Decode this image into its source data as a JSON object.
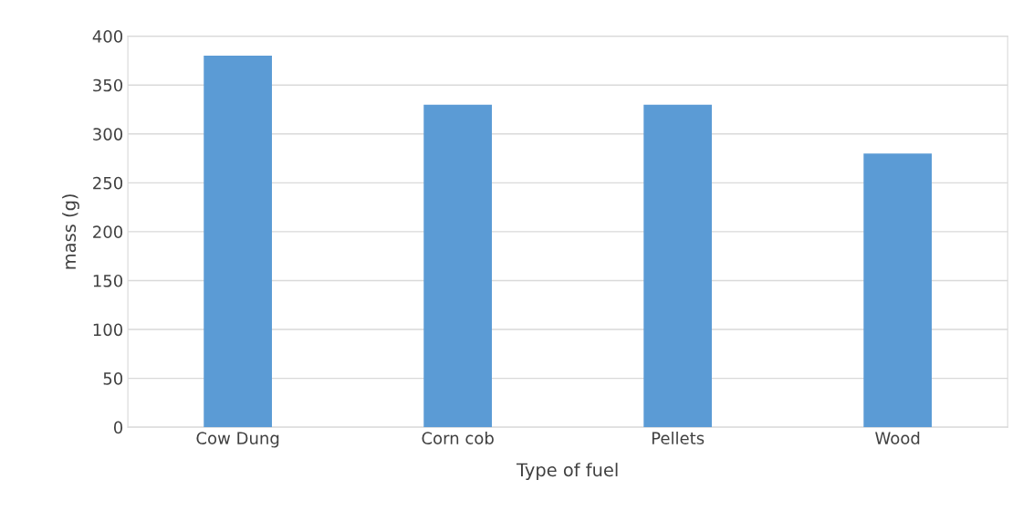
{
  "chart_data": {
    "type": "bar",
    "xlabel": "Type of fuel",
    "ylabel": "mass (g)",
    "categories": [
      "Cow Dung",
      "Corn cob",
      "Pellets",
      "Wood"
    ],
    "values": [
      380,
      330,
      330,
      280
    ],
    "color": "#5b9bd5",
    "ylim": [
      0,
      400
    ],
    "yticks": [
      0,
      50,
      100,
      150,
      200,
      250,
      300,
      350,
      400
    ],
    "grid": "y"
  }
}
